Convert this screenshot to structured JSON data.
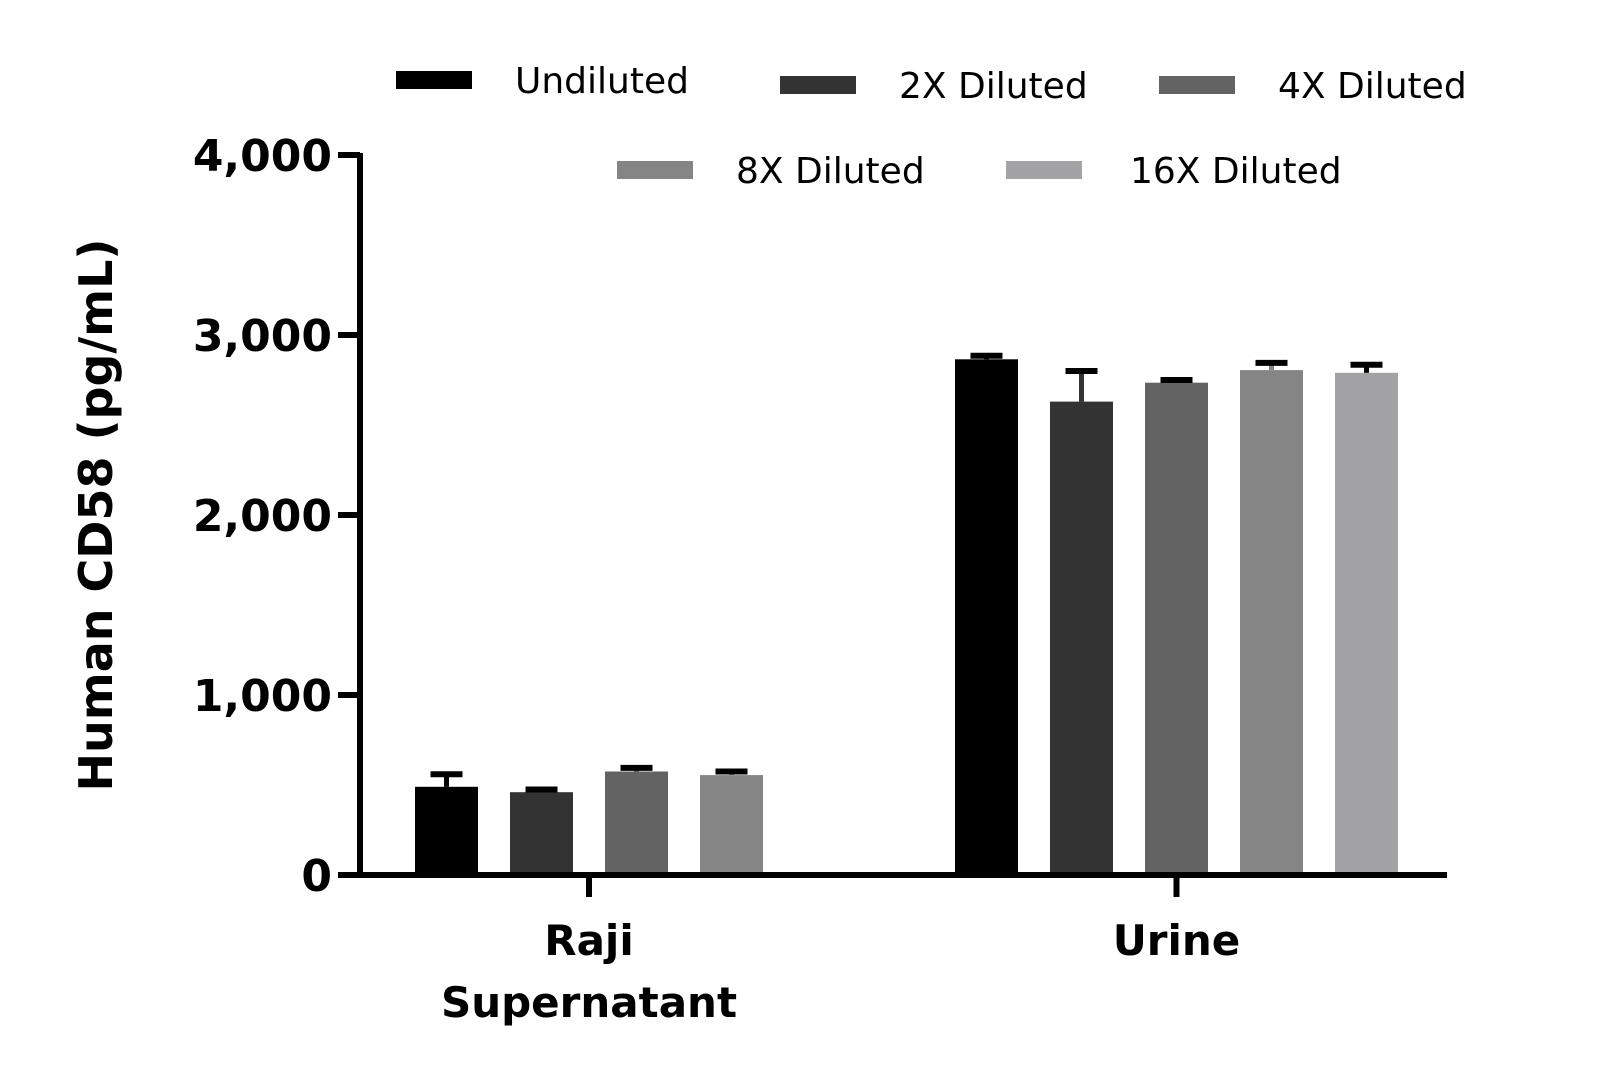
{
  "chart_data": {
    "type": "bar",
    "ylabel": "Human CD58 (pg/mL)",
    "ylim": [
      0,
      4000
    ],
    "yticks": [
      0,
      1000,
      2000,
      3000,
      4000
    ],
    "ytick_labels": [
      "0",
      "1,000",
      "2,000",
      "3,000",
      "4,000"
    ],
    "categories": [
      "Raji Supernatant",
      "Urine"
    ],
    "category_label_lines": [
      [
        "Raji",
        "Supernatant"
      ],
      [
        "Urine"
      ]
    ],
    "legend_position": "top",
    "error_bars": "upper",
    "series": [
      {
        "name": "Undiluted",
        "color": "#000000",
        "values": [
          490,
          2865
        ],
        "errors": [
          70,
          20
        ]
      },
      {
        "name": "2X Diluted",
        "color": "#333333",
        "values": [
          460,
          2630
        ],
        "errors": [
          15,
          170
        ]
      },
      {
        "name": "4X Diluted",
        "color": "#636363",
        "values": [
          575,
          2735
        ],
        "errors": [
          20,
          15
        ]
      },
      {
        "name": "8X Diluted",
        "color": "#858585",
        "values": [
          555,
          2805
        ],
        "errors": [
          20,
          40
        ]
      },
      {
        "name": "16X Diluted",
        "color": "#a3a3a6",
        "values": [
          null,
          2790
        ],
        "errors": [
          null,
          45
        ]
      }
    ]
  }
}
